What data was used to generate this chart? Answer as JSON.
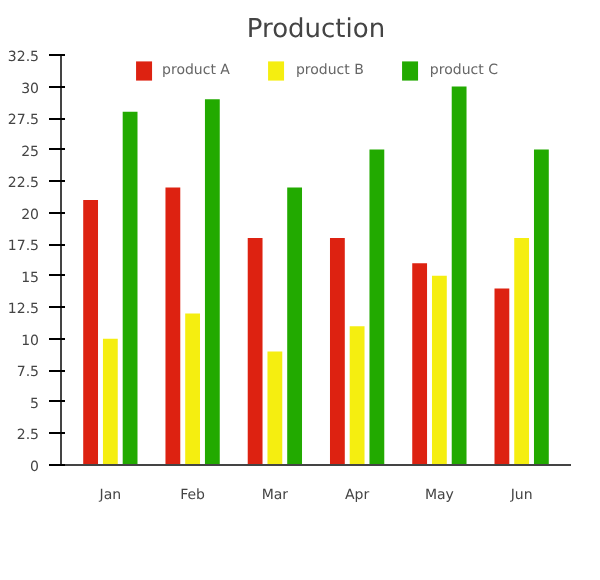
{
  "chart_data": {
    "type": "bar",
    "title": "Production",
    "categories": [
      "Jan",
      "Feb",
      "Mar",
      "Apr",
      "May",
      "Jun"
    ],
    "series": [
      {
        "name": "product A",
        "color": "#dd2211",
        "values": [
          21,
          22,
          18,
          18,
          16,
          14
        ]
      },
      {
        "name": "product B",
        "color": "#f5ee10",
        "values": [
          10,
          12,
          9,
          11,
          15,
          18
        ]
      },
      {
        "name": "product C",
        "color": "#22aa00",
        "values": [
          28,
          29,
          22,
          25,
          30,
          25
        ]
      }
    ],
    "ylim": [
      0,
      32.5
    ],
    "yticks": [
      0,
      2.5,
      5,
      7.5,
      10,
      12.5,
      15,
      17.5,
      20,
      22.5,
      25,
      27.5,
      30,
      32.5
    ],
    "grid": false,
    "legend": "top"
  }
}
